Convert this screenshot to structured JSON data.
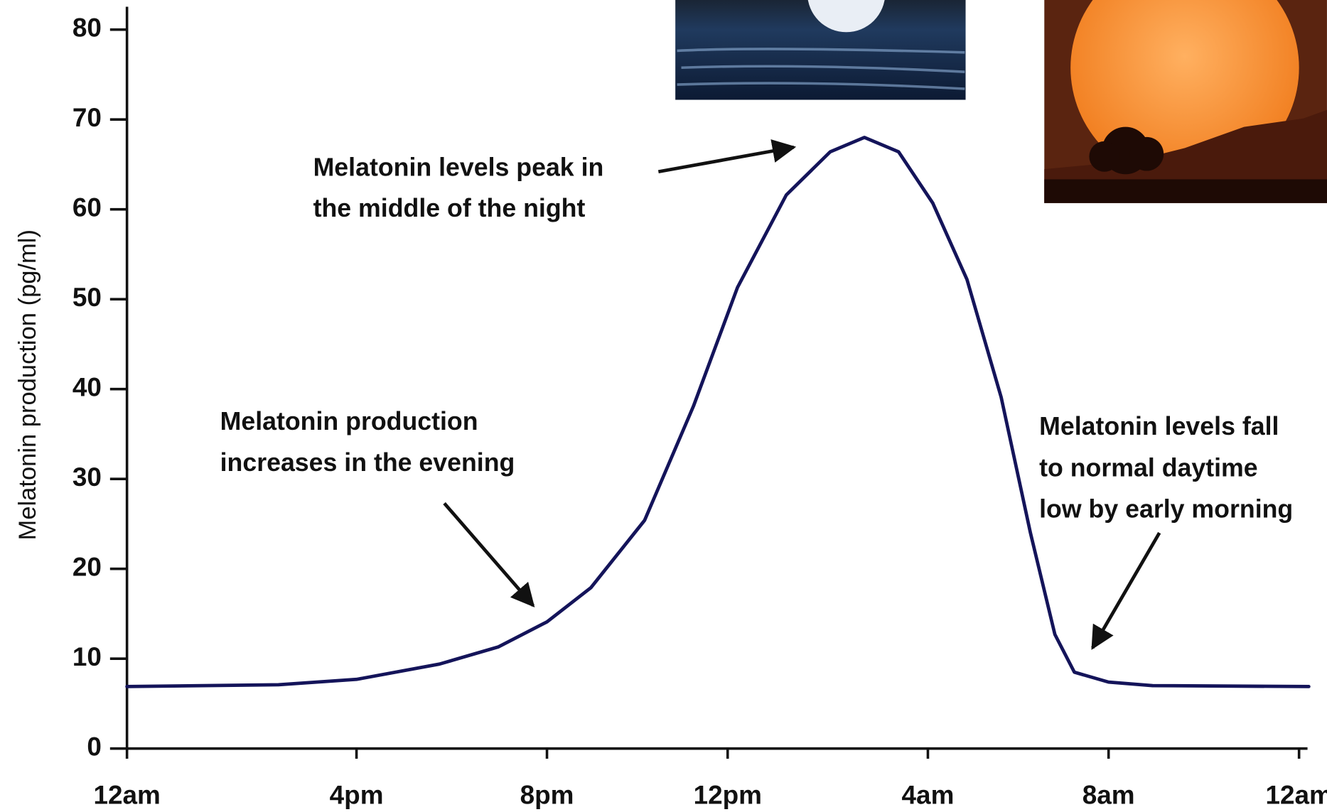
{
  "chart_data": {
    "type": "line",
    "y_label": "Melatonin production (pg/ml)",
    "x": [
      0,
      3.1,
      4.7,
      6.4,
      7.6,
      8.6,
      9.5,
      10.6,
      11.6,
      12.5,
      13.5,
      14.4,
      15.1,
      15.8,
      16.5,
      17.2,
      17.9,
      18.5,
      19.0,
      19.4,
      20.1,
      21.0,
      24.2
    ],
    "series": [
      {
        "color": "#14145a",
        "values": [
          6.9,
          7.1,
          7.7,
          9.4,
          11.3,
          14.1,
          17.9,
          25.4,
          38.1,
          51.3,
          61.6,
          66.4,
          68,
          66.4,
          60.7,
          52.2,
          39.1,
          24,
          12.7,
          8.5,
          7.4,
          7.0,
          6.9
        ]
      }
    ],
    "xlim": [
      0,
      24
    ],
    "xticks": [
      {
        "value": 0,
        "label": "12am"
      },
      {
        "value": 4.7,
        "label": "4pm"
      },
      {
        "value": 8.6,
        "label": "8pm"
      },
      {
        "value": 12.3,
        "label": "12pm"
      },
      {
        "value": 16.4,
        "label": "4am"
      },
      {
        "value": 20.1,
        "label": "8am"
      },
      {
        "value": 24,
        "label": "12am"
      }
    ],
    "ylim": [
      0,
      80
    ],
    "yticks": [
      0,
      10,
      20,
      30,
      40,
      50,
      60,
      70,
      80
    ],
    "annotations": [
      [
        "Melatonin levels peak in",
        "the middle of the night"
      ],
      [
        "Melatonin production",
        "increases in the evening"
      ],
      [
        "Melatonin levels fall",
        "to normal daytime",
        "low by early morning"
      ]
    ]
  }
}
